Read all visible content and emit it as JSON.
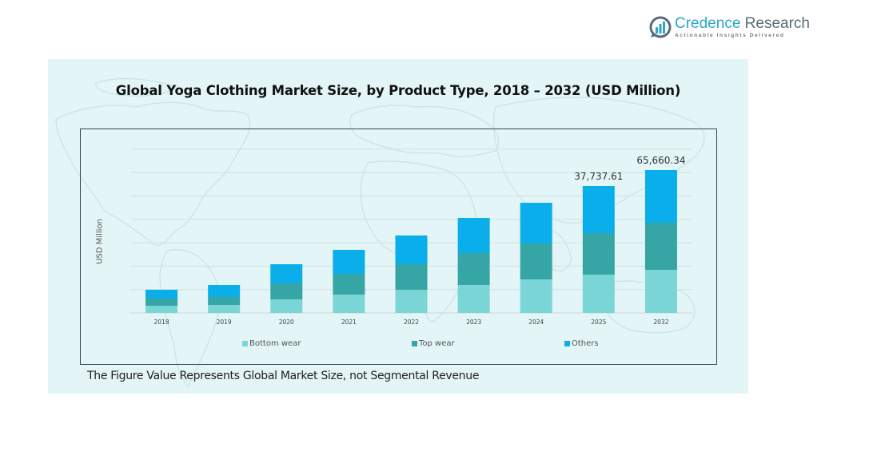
{
  "brand": {
    "name_part1": "Credence",
    "name_part2": "Research",
    "tagline": "Actionable Insights Delivered",
    "icon": "bar-chart-logo-icon"
  },
  "footer_note": "The Figure Value Represents Global Market Size, not Segmental Revenue",
  "chart_data": {
    "type": "bar",
    "stacked": true,
    "title": "Global Yoga Clothing Market Size, by Product Type, 2018 – 2032 (USD Million)",
    "xlabel": "",
    "ylabel": "USD Million",
    "grid": true,
    "legend_position": "bottom",
    "categories": [
      "2018",
      "2019",
      "2020",
      "2021",
      "2022",
      "2023",
      "2024",
      "2025",
      "2032"
    ],
    "series": [
      {
        "name": "Bottom wear",
        "color": "#7ad6d6",
        "values": [
          2136,
          2373,
          4034,
          5458,
          6882,
          8306,
          9967,
          11390,
          19808
        ]
      },
      {
        "name": "Top wear",
        "color": "#36a5a5",
        "values": [
          2136,
          2373,
          4746,
          6170,
          7594,
          9492,
          10679,
          12340,
          21642
        ]
      },
      {
        "name": "Others",
        "color": "#0aaeea",
        "values": [
          2610,
          3560,
          5695,
          7119,
          8543,
          10441,
          12102,
          14007,
          24210
        ]
      }
    ],
    "totals": [
      6882,
      8306,
      14475,
      18747,
      23019,
      28239,
      32748,
      37737.61,
      65660.34
    ],
    "data_labels": [
      {
        "category": "2025",
        "text": "37,737.61"
      },
      {
        "category": "2032",
        "text": "65,660.34"
      }
    ],
    "note": "Axis is not uniform: 2032 bar height not drawn to the same linear scale as 2018–2025."
  }
}
